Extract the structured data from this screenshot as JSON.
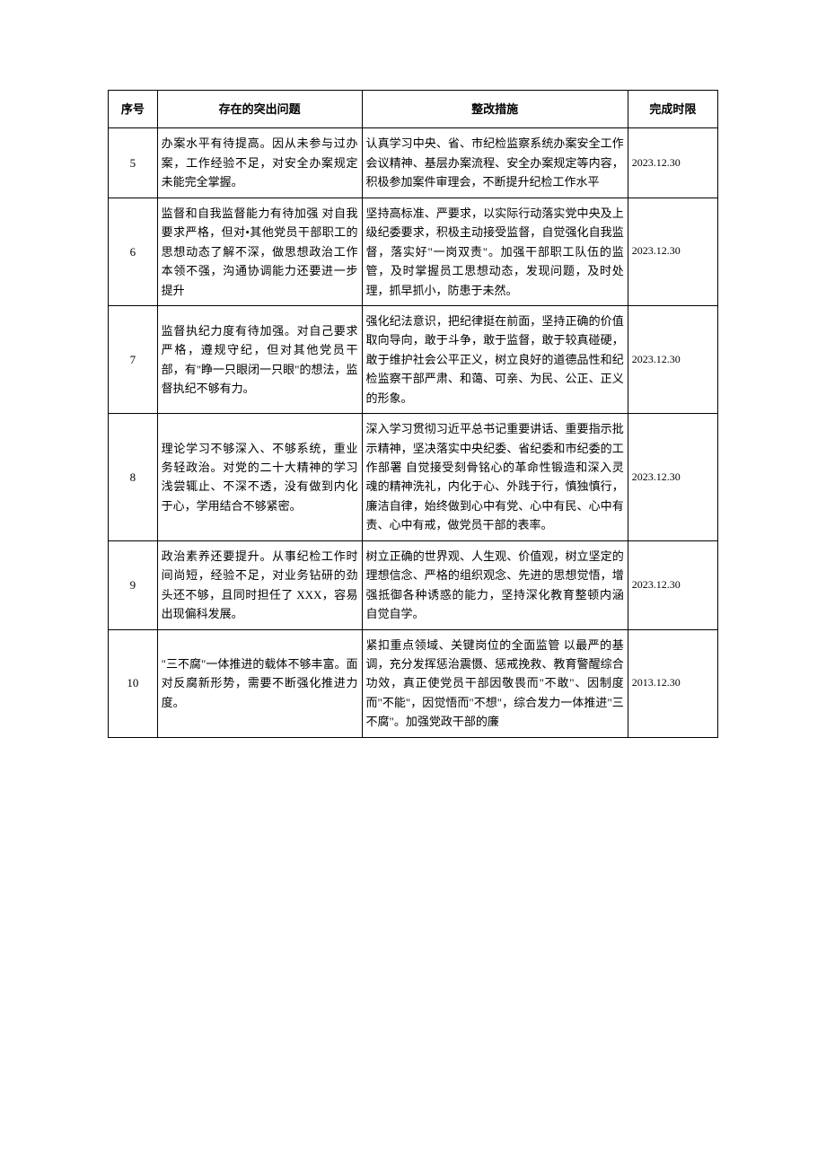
{
  "table": {
    "headers": {
      "seq": "序号",
      "problem": "存在的突出问题",
      "measure": "整改措施",
      "deadline": "完成时限"
    },
    "rows": [
      {
        "seq": "5",
        "problem": "办案水平有待提高。因从未参与过办案，工作经验不足，对安全办案规定未能完全掌握。",
        "measure": "认真学习中央、省、市纪检监察系统办案安全工作会议精神、基层办案流程、安全办案规定等内容，积极参加案件审理会，不断提升纪检工作水平",
        "deadline": "2023.12.30"
      },
      {
        "seq": "6",
        "problem": "监督和自我监督能力有待加强 对自我要求严格，但对•其他党员干部职工的思想动态了解不深，做思想政治工作本领不强，沟通协调能力还要进一步提升",
        "measure": "坚持高标准、严要求，以实际行动落实党中央及上级纪委要求，积极主动接受监督，自觉强化自我监督，落实好\"一岗双责\"。加强干部职工队伍的监管，及时掌握员工思想动态，发现问题，及时处理，抓早抓小，防患于未然。",
        "deadline": "2023.12.30"
      },
      {
        "seq": "7",
        "problem": "监督执纪力度有待加强。对自己要求严格，遵规守纪，但对其他党员干部，有\"睁一只眼闭一只眼\"的想法，监督执纪不够有力。",
        "measure": "强化纪法意识，把纪律挺在前面，坚持正确的价值取向导向，敢于斗争，敢于监督，敢于较真碰硬，敢于维护社会公平正义，树立良好的道德品性和纪检监察干部严肃、和蔼、可亲、为民、公正、正义的形象。",
        "deadline": "2023.12.30"
      },
      {
        "seq": "8",
        "problem": "理论学习不够深入、不够系统，重业务轻政治。对党的二十大精神的学习浅尝辄止、不深不透，没有做到内化于心，学用结合不够紧密。",
        "measure": "深入学习贯彻习近平总书记重要讲话、重要指示批示精神，坚决落实中央纪委、省纪委和市纪委的工作部署 自觉接受刻骨铭心的革命性锻造和深入灵魂的精神洗礼，内化于心、外践于行，慎独慎行，廉洁自律，始终做到心中有党、心中有民、心中有责、心中有戒，做党员干部的表率。",
        "deadline": "2023.12.30"
      },
      {
        "seq": "9",
        "problem": "政治素养还要提升。从事纪检工作时间尚短，经验不足，对业务钻研的劲头还不够，且同时担任了 XXX，容易出现偏科发展。",
        "measure": "树立正确的世界观、人生观、价值观，树立坚定的理想信念、严格的组织观念、先进的思想觉悟，增强抵御各种诱惑的能力，坚持深化教育整顿内涵 自觉自学。",
        "deadline": "2023.12.30"
      },
      {
        "seq": "10",
        "problem": "\"三不腐\"一体推进的载体不够丰富。面对反腐新形势，需要不断强化推进力度。",
        "measure": "紧扣重点领域、关键岗位的全面监管 以最严的基调，充分发挥惩治震慑、惩戒挽救、教育警醒综合功效，真正使党员干部因敬畏而\"不敢\"、因制度而\"不能\"，因觉悟而\"不想\"，综合发力一体推进\"三不腐\"。加强党政干部的廉",
        "deadline": "2013.12.30"
      }
    ]
  }
}
